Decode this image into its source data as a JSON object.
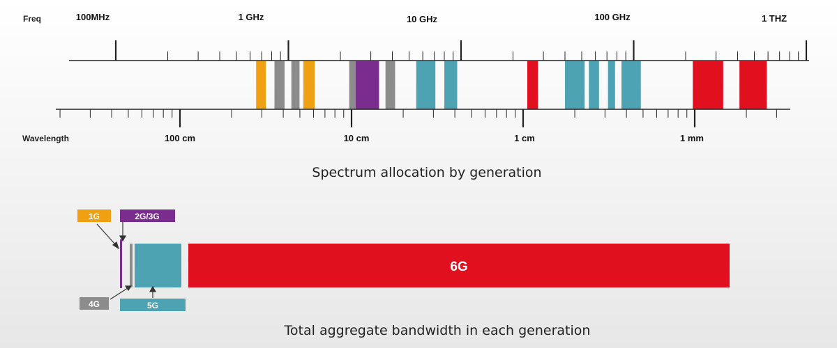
{
  "colors": {
    "1G": "#f0a013",
    "2G/3G": "#7a2d8e",
    "4G": "#8c8c8c",
    "5G": "#4ea3b3",
    "6G": "#e0101e",
    "axis": "#222222"
  },
  "spectrum": {
    "freq_label": "Freq",
    "wavelength_label": "Wavelength",
    "freq_ticks": [
      "100MHz",
      "1 GHz",
      "10 GHz",
      "100 GHz",
      "1 THZ"
    ],
    "wavelength_ticks": [
      "100 cm",
      "10 cm",
      "1 cm",
      "1 mm"
    ],
    "title": "Spectrum allocation by generation",
    "bands": [
      {
        "gen": "1G",
        "from_ghz": 0.65,
        "to_ghz": 0.74
      },
      {
        "gen": "4G",
        "from_ghz": 0.83,
        "to_ghz": 0.95
      },
      {
        "gen": "4G",
        "from_ghz": 1.04,
        "to_ghz": 1.16
      },
      {
        "gen": "1G",
        "from_ghz": 1.22,
        "to_ghz": 1.42
      },
      {
        "gen": "4G",
        "from_ghz": 2.25,
        "to_ghz": 2.45
      },
      {
        "gen": "2G/3G",
        "from_ghz": 2.45,
        "to_ghz": 3.35
      },
      {
        "gen": "4G",
        "from_ghz": 3.65,
        "to_ghz": 4.15
      },
      {
        "gen": "5G",
        "from_ghz": 5.5,
        "to_ghz": 7.1
      },
      {
        "gen": "5G",
        "from_ghz": 8.0,
        "to_ghz": 9.5
      },
      {
        "gen": "6G",
        "from_ghz": 24.2,
        "to_ghz": 27.9
      },
      {
        "gen": "5G",
        "from_ghz": 40.0,
        "to_ghz": 52.0
      },
      {
        "gen": "5G",
        "from_ghz": 55.0,
        "to_ghz": 63.0
      },
      {
        "gen": "5G",
        "from_ghz": 71.0,
        "to_ghz": 78.0
      },
      {
        "gen": "5G",
        "from_ghz": 85.0,
        "to_ghz": 110.0
      },
      {
        "gen": "6G",
        "from_ghz": 220.0,
        "to_ghz": 330.0
      },
      {
        "gen": "6G",
        "from_ghz": 410.0,
        "to_ghz": 590.0
      }
    ]
  },
  "bandwidth": {
    "title": "Total aggregate bandwidth in each generation",
    "tags": {
      "1G": "1G",
      "2G/3G": "2G/3G",
      "4G": "4G",
      "5G": "5G",
      "6G": "6G"
    }
  }
}
